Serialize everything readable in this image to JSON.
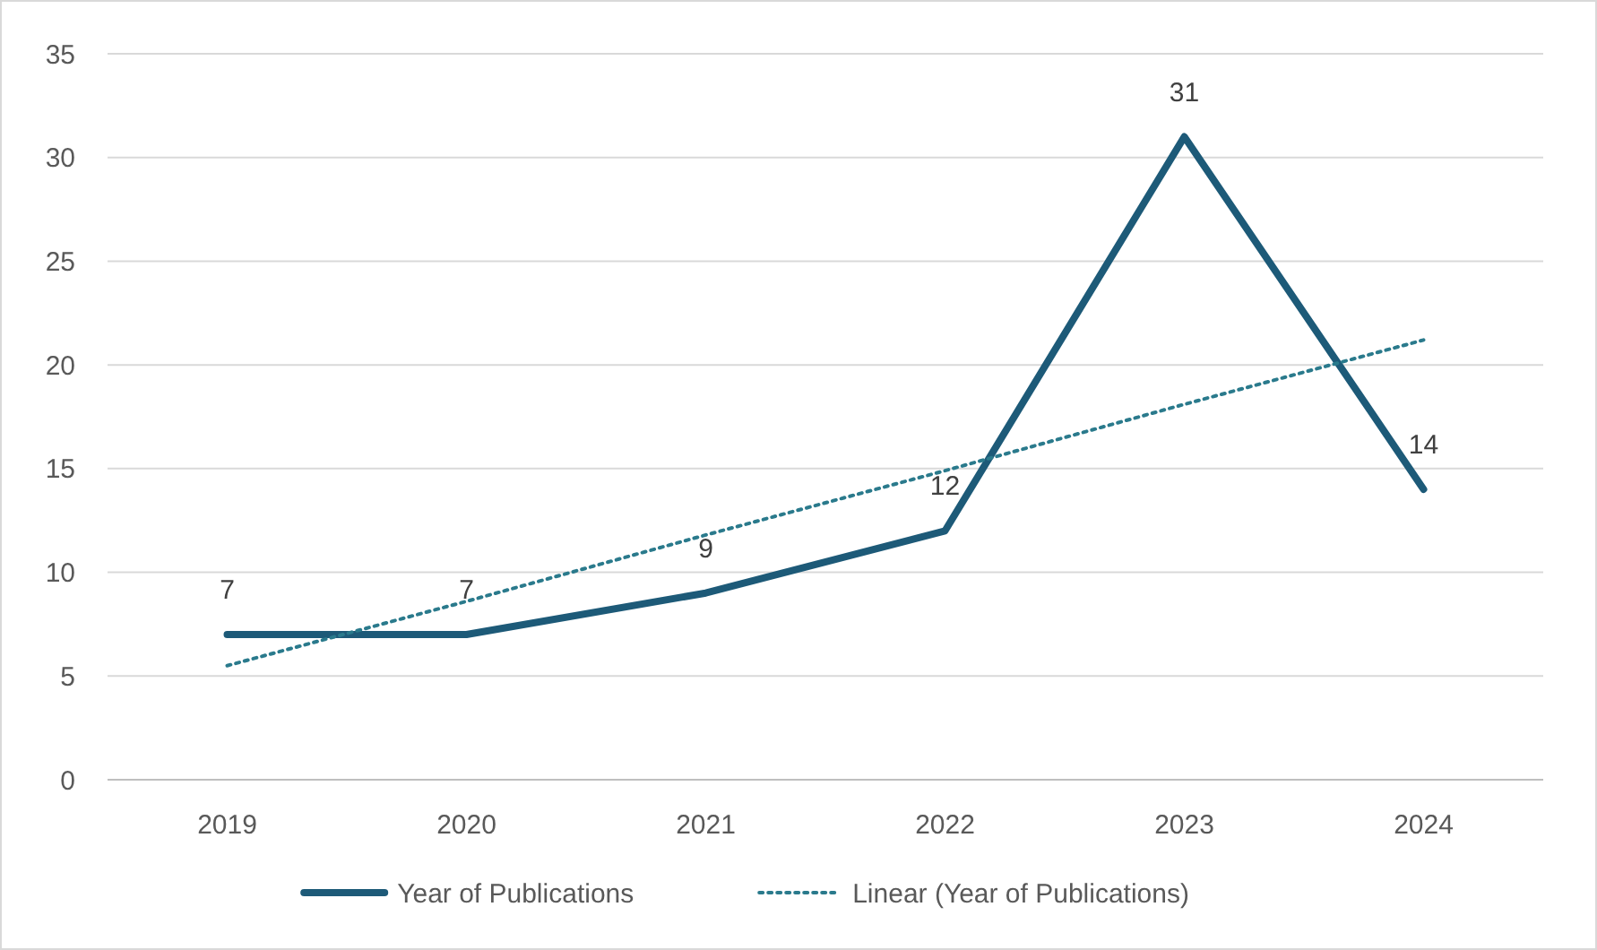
{
  "chart_data": {
    "type": "line",
    "categories": [
      "2019",
      "2020",
      "2021",
      "2022",
      "2023",
      "2024"
    ],
    "series": [
      {
        "name": "Year of Publications",
        "color": "#1d5a78",
        "values": [
          7,
          7,
          9,
          12,
          31,
          14
        ],
        "value_labels": [
          "7",
          "7",
          "9",
          "12",
          "31",
          "14"
        ],
        "line_style": "solid"
      },
      {
        "name": "Linear (Year of Publications)",
        "color": "#2a7a8c",
        "type": "line",
        "values": [
          5.5,
          8.6,
          11.8,
          14.9,
          18.1,
          21.2
        ],
        "line_style": "dotted"
      }
    ],
    "ylim": [
      0,
      35
    ],
    "yticks": [
      0,
      5,
      10,
      15,
      20,
      25,
      30,
      35
    ],
    "grid": "y",
    "legend": "bottom",
    "marker": "none"
  }
}
